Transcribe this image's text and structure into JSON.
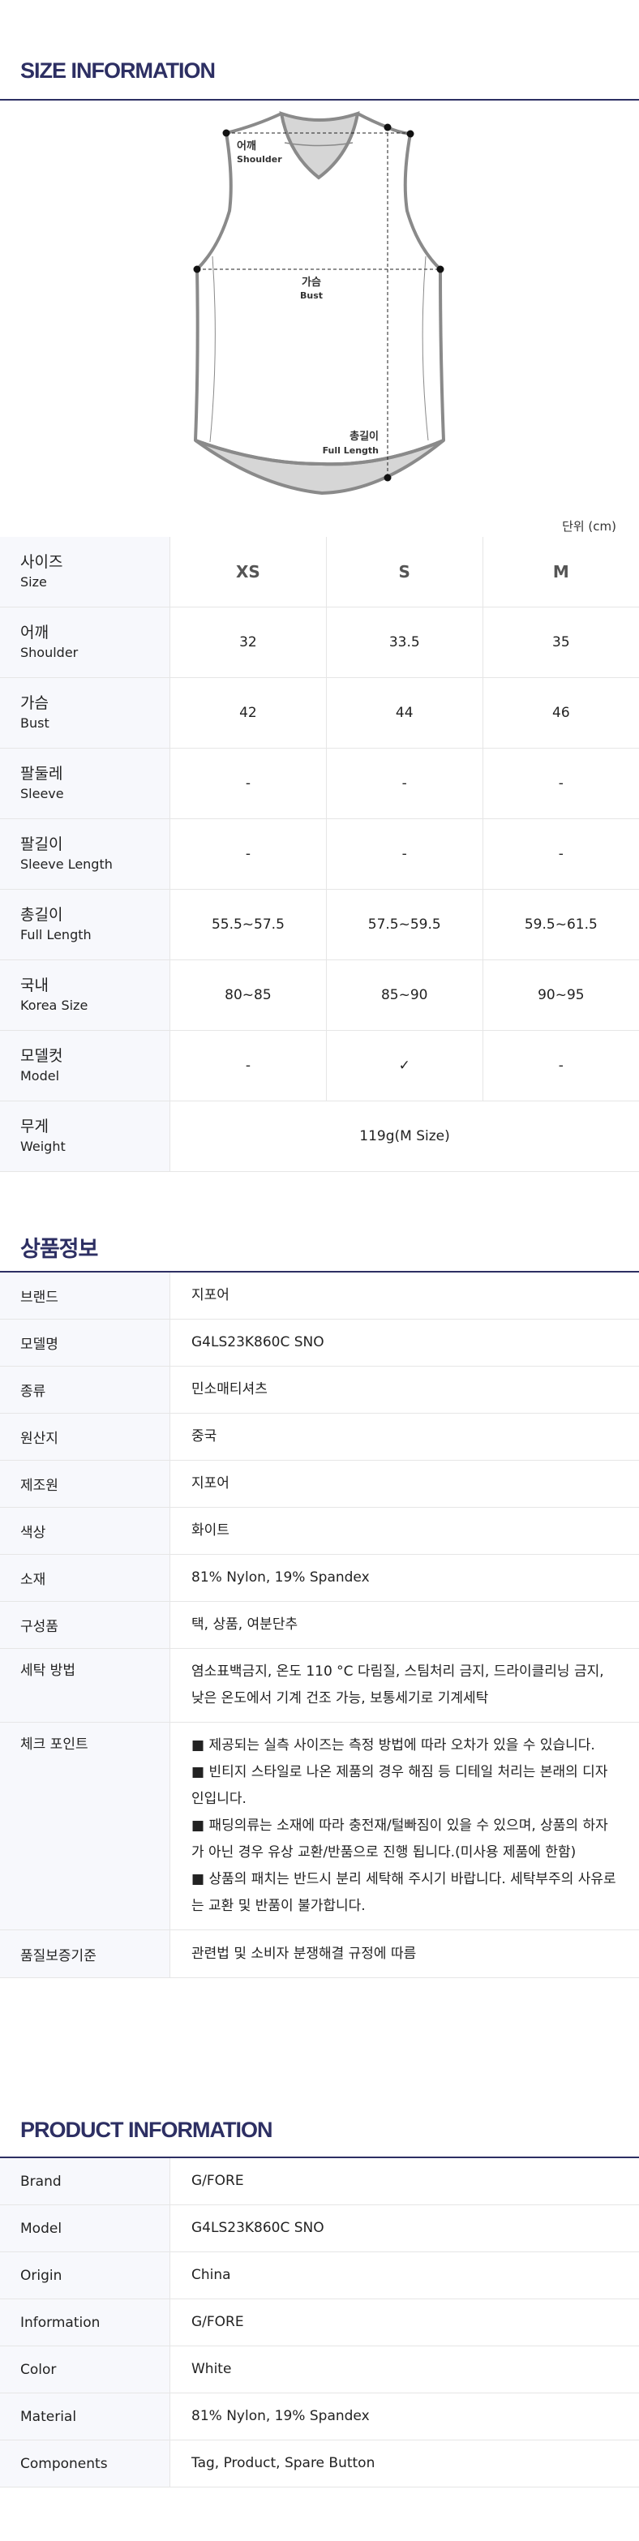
{
  "size_info": {
    "title": "SIZE INFORMATION",
    "diagram": {
      "shoulder_ko": "어깨",
      "shoulder_en": "Shoulder",
      "bust_ko": "가슴",
      "bust_en": "Bust",
      "length_ko": "총길이",
      "length_en": "Full Length"
    },
    "unit": "단위 (cm)",
    "header": {
      "ko": "사이즈",
      "en": "Size",
      "sizes": [
        "XS",
        "S",
        "M"
      ]
    },
    "rows": [
      {
        "ko": "어깨",
        "en": "Shoulder",
        "values": [
          "32",
          "33.5",
          "35"
        ]
      },
      {
        "ko": "가슴",
        "en": "Bust",
        "values": [
          "42",
          "44",
          "46"
        ]
      },
      {
        "ko": "팔둘레",
        "en": "Sleeve",
        "values": [
          "-",
          "-",
          "-"
        ]
      },
      {
        "ko": "팔길이",
        "en": "Sleeve Length",
        "values": [
          "-",
          "-",
          "-"
        ]
      },
      {
        "ko": "총길이",
        "en": "Full Length",
        "values": [
          "55.5~57.5",
          "57.5~59.5",
          "59.5~61.5"
        ]
      },
      {
        "ko": "국내",
        "en": "Korea Size",
        "values": [
          "80~85",
          "85~90",
          "90~95"
        ]
      },
      {
        "ko": "모델컷",
        "en": "Model",
        "values": [
          "-",
          "✓",
          "-"
        ]
      }
    ],
    "weight": {
      "ko": "무게",
      "en": "Weight",
      "value": "119g(M Size)"
    }
  },
  "product_info_ko": {
    "title": "상품정보",
    "rows": [
      {
        "label": "브랜드",
        "value": "지포어"
      },
      {
        "label": "모델명",
        "value": "G4LS23K860C SNO"
      },
      {
        "label": "종류",
        "value": "민소매티셔츠"
      },
      {
        "label": "원산지",
        "value": "중국"
      },
      {
        "label": "제조원",
        "value": "지포어"
      },
      {
        "label": "색상",
        "value": "화이트"
      },
      {
        "label": "소재",
        "value": "81% Nylon, 19% Spandex"
      },
      {
        "label": "구성품",
        "value": "택, 상품, 여분단추"
      },
      {
        "label": "세탁 방법",
        "value": "염소표백금지, 온도 110 °C 다림질, 스팀처리 금지, 드라이클리닝 금지, 낮은 온도에서 기계 건조 가능, 보통세기로 기계세탁"
      }
    ],
    "checkpoint": {
      "label": "체크 포인트",
      "items": [
        "■ 제공되는 실측 사이즈는 측정 방법에 따라 오차가 있을 수 있습니다.",
        "■ 빈티지 스타일로 나온 제품의 경우 해짐 등 디테일 처리는 본래의 디자인입니다.",
        "■ 패딩의류는 소재에 따라 충전재/털빠짐이 있을 수 있으며, 상품의 하자가 아닌 경우 유상 교환/반품으로 진행 됩니다.(미사용 제품에 한함)",
        "■ 상품의 패치는 반드시 분리 세탁해 주시기 바랍니다. 세탁부주의 사유로는 교환 및 반품이 불가합니다."
      ]
    },
    "quality": {
      "label": "품질보증기준",
      "value": "관련법 및 소비자 분쟁해결 규정에 따름"
    }
  },
  "product_info_en": {
    "title": "PRODUCT INFORMATION",
    "rows": [
      {
        "label": "Brand",
        "value": "G/FORE"
      },
      {
        "label": "Model",
        "value": "G4LS23K860C SNO"
      },
      {
        "label": "Origin",
        "value": "China"
      },
      {
        "label": "Information",
        "value": "G/FORE"
      },
      {
        "label": "Color",
        "value": "White"
      },
      {
        "label": "Material",
        "value": "81% Nylon, 19% Spandex"
      },
      {
        "label": "Components",
        "value": "Tag, Product, Spare Button"
      }
    ]
  },
  "colors": {
    "accent": "#2d2f63",
    "label_bg": "#f7f8fc",
    "border": "#e6e6e6",
    "garment_stroke": "#8a8a8a",
    "garment_fill": "#d6d6d6"
  }
}
